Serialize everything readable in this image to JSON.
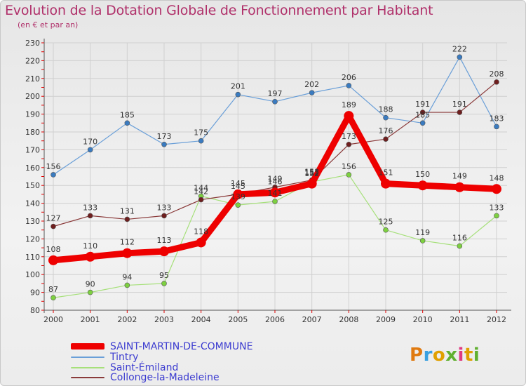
{
  "title": "Evolution de la Dotation Globale de Fonctionnement par Habitant",
  "subtitle": "(en € et par an)",
  "logo_text": "Proxiti",
  "chart_data": {
    "type": "line",
    "title": "Evolution de la Dotation Globale de Fonctionnement par Habitant",
    "ylabel": "(en € et par an)",
    "xlabel": "",
    "ylim": [
      80,
      230
    ],
    "yticks": [
      "80",
      "90",
      "100",
      "110",
      "120",
      "130",
      "140",
      "150",
      "160",
      "170",
      "180",
      "190",
      "200",
      "210",
      "220",
      "230"
    ],
    "categories": [
      "2000",
      "2001",
      "2002",
      "2003",
      "2004",
      "2005",
      "2006",
      "2007",
      "2008",
      "2009",
      "2010",
      "2011",
      "2012"
    ],
    "series": [
      {
        "name": "Tintry",
        "color": "#6a9fd8",
        "marker": "#3a7bc0",
        "values": [
          156,
          170,
          185,
          173,
          175,
          201,
          197,
          202,
          206,
          188,
          185,
          222,
          183
        ]
      },
      {
        "name": "Saint-Émiland",
        "color": "#a6e07a",
        "marker": "#7dd040",
        "values": [
          87,
          90,
          94,
          95,
          144,
          139,
          141,
          152,
          156,
          125,
          119,
          116,
          133
        ]
      },
      {
        "name": "Collonge-la-Madeleine",
        "color": "#8a3a3a",
        "marker": "#6e1e1e",
        "values": [
          127,
          133,
          131,
          133,
          142,
          145,
          149,
          153,
          173,
          176,
          191,
          191,
          208
        ]
      },
      {
        "name": "SAINT-MARTIN-DE-COMMUNE",
        "color": "#ee0000",
        "marker": "#ee0000",
        "values": [
          108,
          110,
          112,
          113,
          118,
          145,
          146,
          151,
          189,
          151,
          150,
          149,
          148
        ]
      }
    ],
    "data_labels": [
      {
        "series": 0,
        "labels": [
          "156",
          "170",
          "185",
          "173",
          "175",
          "201",
          "197",
          "202",
          "206",
          "188",
          "185",
          "222",
          "183"
        ]
      },
      {
        "series": 1,
        "labels": [
          "87",
          "90",
          "94",
          "95",
          "144",
          "139",
          "141",
          "152",
          "156",
          "125",
          "119",
          "116",
          "133"
        ]
      },
      {
        "series": 2,
        "labels": [
          "127",
          "133",
          "131",
          "133",
          "142",
          "145",
          "149",
          "153",
          "173",
          "176",
          "191",
          "191",
          "208"
        ]
      },
      {
        "series": 3,
        "labels": [
          "108",
          "110",
          "112",
          "113",
          "118",
          "145",
          "146",
          "151",
          "189",
          "151",
          "150",
          "149",
          "148"
        ]
      }
    ],
    "legend": [
      {
        "label": "SAINT-MARTIN-DE-COMMUNE",
        "color": "#ee0000"
      },
      {
        "label": "Tintry",
        "color": "#6a9fd8"
      },
      {
        "label": "Saint-Émiland",
        "color": "#a6e07a"
      },
      {
        "label": "Collonge-la-Madeleine",
        "color": "#8a3a3a"
      }
    ]
  }
}
